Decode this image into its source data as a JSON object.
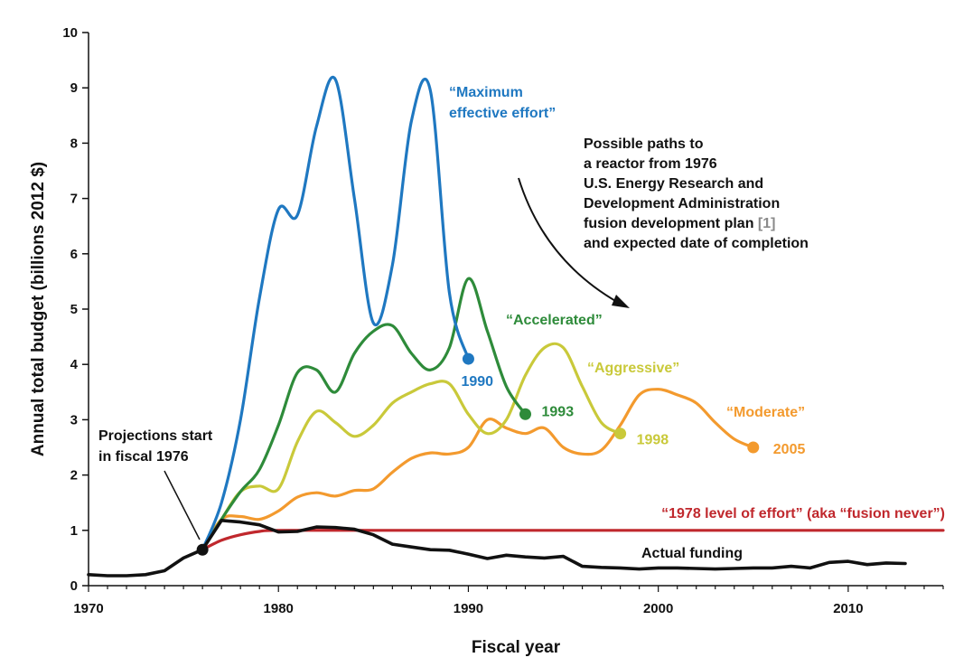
{
  "chart_data": {
    "type": "line",
    "title": "",
    "xlabel": "Fiscal year",
    "ylabel": "Annual total budget (billions 2012 $)",
    "xlim": [
      1970,
      2015
    ],
    "ylim": [
      0,
      10
    ],
    "x_ticks": [
      "1970",
      "1980",
      "1990",
      "2000",
      "2010"
    ],
    "y_ticks": [
      "0",
      "1",
      "2",
      "3",
      "4",
      "5",
      "6",
      "7",
      "8",
      "9",
      "10"
    ],
    "grid": false,
    "legend": "none",
    "series": [
      {
        "name": "“Maximum effective effort”",
        "color": "#1f78c1",
        "end_label": "1990",
        "x": [
          1976,
          1977,
          1978,
          1979,
          1980,
          1981,
          1982,
          1983,
          1984,
          1985,
          1986,
          1987,
          1988,
          1989,
          1990
        ],
        "y": [
          0.65,
          1.5,
          3.0,
          5.2,
          6.8,
          6.7,
          8.3,
          9.15,
          7.0,
          4.75,
          5.8,
          8.4,
          8.95,
          5.3,
          4.1
        ]
      },
      {
        "name": "“Accelerated”",
        "color": "#2e8b3a",
        "end_label": "1993",
        "x": [
          1976,
          1977,
          1978,
          1979,
          1980,
          1981,
          1982,
          1983,
          1984,
          1985,
          1986,
          1987,
          1988,
          1989,
          1990,
          1991,
          1992,
          1993
        ],
        "y": [
          0.65,
          1.2,
          1.7,
          2.1,
          2.9,
          3.85,
          3.9,
          3.5,
          4.2,
          4.6,
          4.7,
          4.2,
          3.9,
          4.3,
          5.55,
          4.6,
          3.6,
          3.1
        ]
      },
      {
        "name": "“Aggressive”",
        "color": "#c9c93a",
        "end_label": "1998",
        "x": [
          1976,
          1977,
          1978,
          1979,
          1980,
          1981,
          1982,
          1983,
          1984,
          1985,
          1986,
          1987,
          1988,
          1989,
          1990,
          1991,
          1992,
          1993,
          1994,
          1995,
          1996,
          1997,
          1998
        ],
        "y": [
          0.65,
          1.2,
          1.7,
          1.8,
          1.75,
          2.6,
          3.15,
          2.95,
          2.7,
          2.9,
          3.3,
          3.5,
          3.65,
          3.65,
          3.1,
          2.75,
          3.0,
          3.8,
          4.3,
          4.3,
          3.6,
          2.95,
          2.75
        ]
      },
      {
        "name": "“Moderate”",
        "color": "#f39a2e",
        "end_label": "2005",
        "x": [
          1976,
          1977,
          1978,
          1979,
          1980,
          1981,
          1982,
          1983,
          1984,
          1985,
          1986,
          1987,
          1988,
          1989,
          1990,
          1991,
          1992,
          1993,
          1994,
          1995,
          1996,
          1997,
          1998,
          1999,
          2000,
          2001,
          2002,
          2003,
          2004,
          2005
        ],
        "y": [
          0.65,
          1.2,
          1.25,
          1.2,
          1.35,
          1.6,
          1.68,
          1.62,
          1.72,
          1.75,
          2.05,
          2.3,
          2.4,
          2.38,
          2.5,
          3.0,
          2.85,
          2.75,
          2.85,
          2.5,
          2.38,
          2.45,
          2.9,
          3.45,
          3.55,
          3.45,
          3.3,
          2.95,
          2.65,
          2.5
        ]
      },
      {
        "name": "“1978 level of effort” (aka “fusion never”)",
        "color": "#c0282d",
        "end_label": "",
        "x": [
          1976,
          1977,
          1978,
          1979,
          1980,
          1985,
          1990,
          1995,
          2000,
          2005,
          2010,
          2015
        ],
        "y": [
          0.65,
          0.82,
          0.92,
          0.98,
          1.0,
          1.0,
          1.0,
          1.0,
          1.0,
          1.0,
          1.0,
          1.0
        ]
      },
      {
        "name": "Actual funding",
        "color": "#111111",
        "end_label": "",
        "x": [
          1970,
          1971,
          1972,
          1973,
          1974,
          1975,
          1976,
          1977,
          1978,
          1979,
          1980,
          1981,
          1982,
          1983,
          1984,
          1985,
          1986,
          1987,
          1988,
          1989,
          1990,
          1991,
          1992,
          1993,
          1994,
          1995,
          1996,
          1997,
          1998,
          1999,
          2000,
          2001,
          2002,
          2003,
          2004,
          2005,
          2006,
          2007,
          2008,
          2009,
          2010,
          2011,
          2012,
          2013
        ],
        "y": [
          0.2,
          0.18,
          0.18,
          0.2,
          0.27,
          0.5,
          0.65,
          1.18,
          1.15,
          1.1,
          0.97,
          0.98,
          1.06,
          1.05,
          1.02,
          0.92,
          0.75,
          0.7,
          0.65,
          0.64,
          0.57,
          0.49,
          0.55,
          0.52,
          0.5,
          0.53,
          0.35,
          0.33,
          0.32,
          0.3,
          0.32,
          0.32,
          0.31,
          0.3,
          0.31,
          0.32,
          0.32,
          0.35,
          0.32,
          0.42,
          0.44,
          0.38,
          0.41,
          0.4
        ]
      }
    ],
    "start_point": {
      "x": 1976,
      "y": 0.65
    },
    "annotations": {
      "projections_line1": "Projections start",
      "projections_line2": "in fiscal 1976",
      "paths_note": [
        "Possible paths to",
        "a reactor from 1976",
        "U.S. Energy Research and",
        "Development Administration",
        "fusion development plan ",
        "and expected date of completion"
      ],
      "paths_note_ref": "[1]",
      "maximum_line1": "“Maximum",
      "maximum_line2": "effective effort”",
      "accelerated": "“Accelerated”",
      "aggressive": "“Aggressive”",
      "moderate": "“Moderate”",
      "level_1978": "“1978 level of effort” (aka “fusion never”)",
      "actual": "Actual funding"
    }
  }
}
